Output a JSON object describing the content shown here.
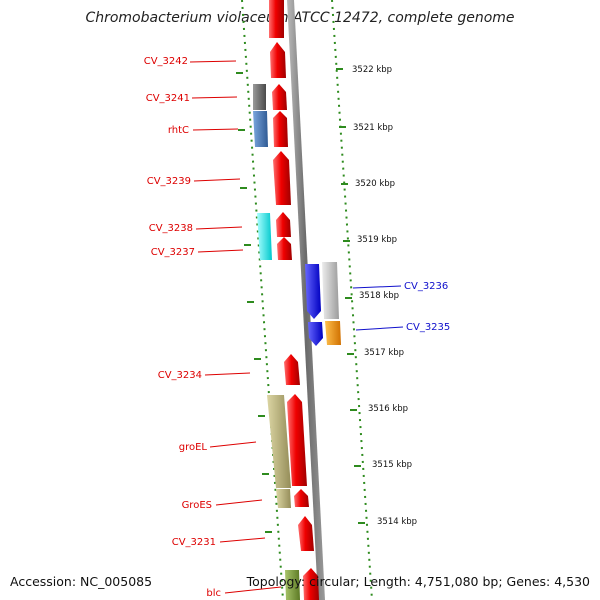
{
  "title": "Chromobacterium violaceum ATCC 12472, complete genome",
  "footer": {
    "accession": "Accession: NC_005085",
    "topology": "Topology: circular; Length: 4,751,080 bp; Genes: 4,530"
  },
  "kbp_ticks": [
    "3522 kbp",
    "3521 kbp",
    "3520 kbp",
    "3519 kbp",
    "3518 kbp",
    "3517 kbp",
    "3516 kbp",
    "3515 kbp",
    "3514 kbp"
  ],
  "genes_left": [
    "CV_3242",
    "CV_3241",
    "rhtC",
    "CV_3239",
    "CV_3238",
    "CV_3237",
    "CV_3234",
    "groEL",
    "GroES",
    "CV_3231",
    "blc"
  ],
  "genes_right": [
    "CV_3236",
    "CV_3235"
  ],
  "colors": {
    "red_gene": "#e80000",
    "gray_gene": "#6e6e6e",
    "steelblue_gene": "#4a7ab8",
    "cyan_gene": "#00e8ea",
    "blue_gene": "#1a1aee",
    "silver_gene": "#bdbdbd",
    "orange_gene": "#f39200",
    "khaki_gene": "#b8b07a",
    "olive_gene": "#7a9a3a",
    "tick_green": "#2e8b1e",
    "backbone": "#7c7c7c",
    "label_red": "#dd0000",
    "label_blue": "#1010cc"
  }
}
